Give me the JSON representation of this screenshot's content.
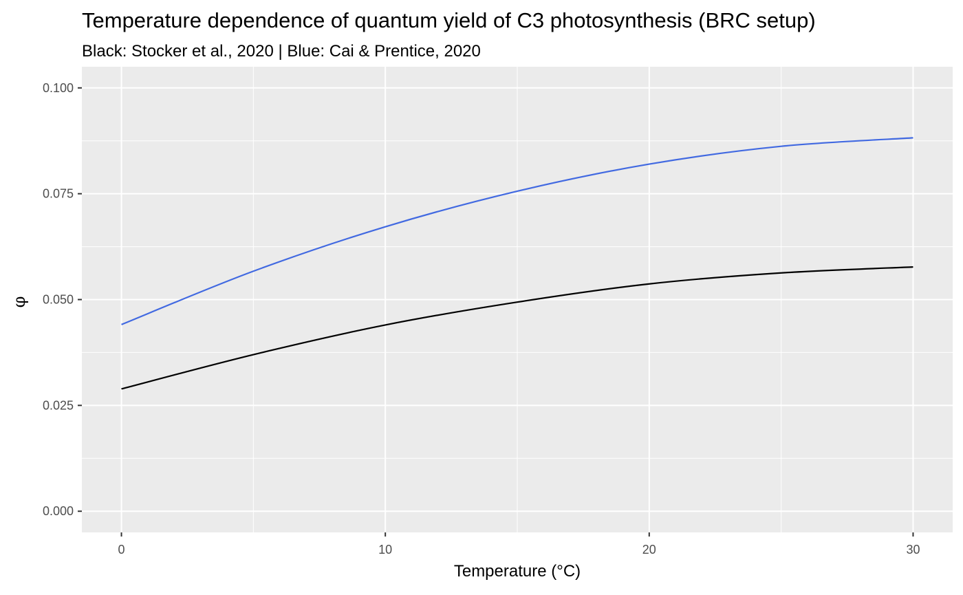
{
  "chart_data": {
    "type": "line",
    "title": "Temperature dependence of quantum yield of C3 photosynthesis (BRC setup)",
    "subtitle": "Black: Stocker et al., 2020 | Blue: Cai & Prentice, 2020",
    "xlabel": "Temperature (°C)",
    "ylabel": "φ",
    "xlim": [
      -1.5,
      31.5
    ],
    "ylim": [
      -0.005,
      0.105
    ],
    "x_ticks": [
      0,
      10,
      20,
      30
    ],
    "x_tick_labels": [
      "0",
      "10",
      "20",
      "30"
    ],
    "y_ticks": [
      0.0,
      0.025,
      0.05,
      0.075,
      0.1
    ],
    "y_tick_labels": [
      "0.000",
      "0.025",
      "0.050",
      "0.075",
      "0.100"
    ],
    "grid": true,
    "legend": "none",
    "background": "#ebebeb",
    "series": [
      {
        "color": "#4169e1",
        "x": [
          0,
          5,
          10,
          15,
          20,
          25,
          30
        ],
        "y": [
          0.0441,
          0.0567,
          0.0672,
          0.0756,
          0.082,
          0.0862,
          0.0882
        ]
      },
      {
        "color": "#000000",
        "x": [
          0,
          5,
          10,
          15,
          20,
          25,
          30
        ],
        "y": [
          0.0289,
          0.037,
          0.044,
          0.0494,
          0.0537,
          0.0563,
          0.0577
        ]
      }
    ]
  }
}
